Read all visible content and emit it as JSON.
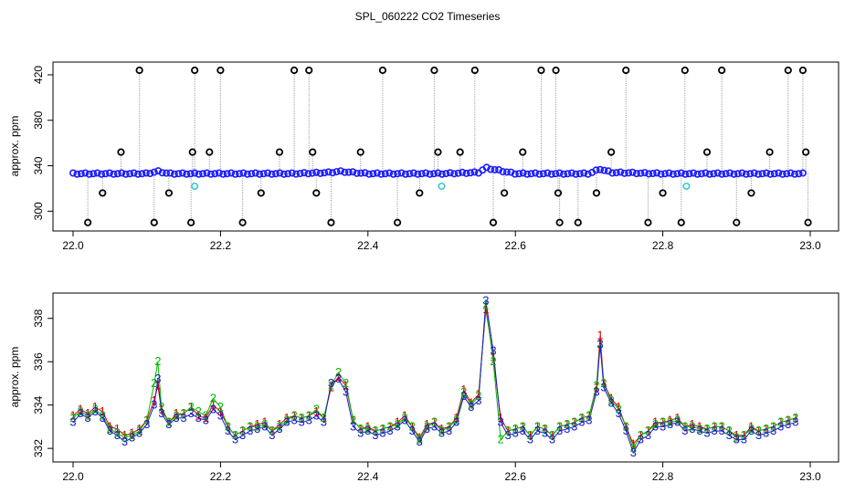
{
  "figure": {
    "title": "SPL_060222  CO2 Timeseries"
  },
  "chart_data": [
    {
      "type": "scatter",
      "panel": "top",
      "title": "",
      "xlabel": "",
      "ylabel": "approx. ppm",
      "xlim": [
        22.0,
        23.0
      ],
      "ylim": [
        285,
        428
      ],
      "xticks": [
        22.0,
        22.2,
        22.4,
        22.6,
        22.8,
        23.0
      ],
      "xtick_labels": [
        "22.0",
        "22.2",
        "22.4",
        "22.6",
        "22.8",
        "23.0"
      ],
      "yticks": [
        300,
        340,
        380,
        420
      ],
      "ytick_labels": [
        "300",
        "340",
        "380",
        "420"
      ],
      "grid": false,
      "baseline_series": {
        "name": "",
        "color": "#1a1aff",
        "x": [
          22.0,
          22.05,
          22.1,
          22.115,
          22.13,
          22.2,
          22.3,
          22.35,
          22.36,
          22.4,
          22.5,
          22.55,
          22.56,
          22.6,
          22.7,
          22.715,
          22.73,
          22.8,
          22.9,
          22.99
        ],
        "y": [
          333,
          333,
          333,
          335,
          333,
          333,
          333,
          334,
          335,
          333,
          333,
          334,
          338,
          333,
          333,
          337,
          334,
          333,
          333,
          333
        ]
      },
      "spikes": {
        "color": "#000000",
        "x": [
          22.02,
          22.04,
          22.065,
          22.09,
          22.11,
          22.13,
          22.16,
          22.162,
          22.165,
          22.185,
          22.2,
          22.23,
          22.255,
          22.28,
          22.3,
          22.32,
          22.325,
          22.33,
          22.35,
          22.39,
          22.42,
          22.44,
          22.47,
          22.49,
          22.495,
          22.525,
          22.545,
          22.57,
          22.585,
          22.61,
          22.635,
          22.655,
          22.658,
          22.66,
          22.685,
          22.71,
          22.73,
          22.75,
          22.78,
          22.8,
          22.825,
          22.83,
          22.86,
          22.88,
          22.9,
          22.92,
          22.945,
          22.97,
          22.99,
          22.994,
          22.997
        ],
        "y": [
          290,
          316,
          352,
          424,
          290,
          316,
          290,
          352,
          424,
          352,
          424,
          290,
          316,
          352,
          424,
          424,
          352,
          316,
          290,
          352,
          424,
          290,
          316,
          424,
          352,
          352,
          424,
          290,
          316,
          352,
          424,
          424,
          316,
          290,
          290,
          316,
          352,
          424,
          290,
          316,
          290,
          424,
          352,
          424,
          290,
          316,
          352,
          424,
          424,
          352,
          290
        ]
      },
      "flagged": {
        "color": "#33cccc",
        "x": [
          22.165,
          22.5,
          22.832
        ],
        "y": [
          322,
          322,
          322
        ]
      }
    },
    {
      "type": "line",
      "panel": "bottom",
      "title": "",
      "xlabel": "",
      "ylabel": "approx. ppm",
      "xlim": [
        22.0,
        23.0
      ],
      "ylim": [
        331.5,
        339.0
      ],
      "xticks": [
        22.0,
        22.2,
        22.4,
        22.6,
        22.8,
        23.0
      ],
      "xtick_labels": [
        "22.0",
        "22.2",
        "22.4",
        "22.6",
        "22.8",
        "23.0"
      ],
      "yticks": [
        332,
        334,
        336,
        338
      ],
      "ytick_labels": [
        "332",
        "334",
        "336",
        "338"
      ],
      "grid": false,
      "x": [
        22.0,
        22.01,
        22.02,
        22.03,
        22.04,
        22.05,
        22.06,
        22.07,
        22.08,
        22.09,
        22.1,
        22.11,
        22.115,
        22.12,
        22.13,
        22.14,
        22.15,
        22.16,
        22.17,
        22.18,
        22.19,
        22.2,
        22.21,
        22.22,
        22.23,
        22.24,
        22.25,
        22.26,
        22.27,
        22.28,
        22.29,
        22.3,
        22.31,
        22.32,
        22.33,
        22.34,
        22.35,
        22.36,
        22.37,
        22.38,
        22.39,
        22.4,
        22.41,
        22.42,
        22.43,
        22.44,
        22.45,
        22.46,
        22.47,
        22.48,
        22.49,
        22.5,
        22.51,
        22.52,
        22.53,
        22.54,
        22.55,
        22.56,
        22.57,
        22.58,
        22.59,
        22.6,
        22.61,
        22.62,
        22.63,
        22.64,
        22.65,
        22.66,
        22.67,
        22.68,
        22.69,
        22.7,
        22.71,
        22.715,
        22.72,
        22.73,
        22.74,
        22.75,
        22.76,
        22.77,
        22.78,
        22.79,
        22.8,
        22.81,
        22.82,
        22.83,
        22.84,
        22.85,
        22.86,
        22.87,
        22.88,
        22.89,
        22.9,
        22.91,
        22.92,
        22.93,
        22.94,
        22.95,
        22.96,
        22.97,
        22.98
      ],
      "series": [
        {
          "name": "",
          "marker": "1",
          "color": "#dd0000",
          "y": [
            333.5,
            333.8,
            333.6,
            333.9,
            333.7,
            333.0,
            332.9,
            332.6,
            332.7,
            332.9,
            333.3,
            334.2,
            334.9,
            333.8,
            333.2,
            333.6,
            333.6,
            333.9,
            333.5,
            333.4,
            334.0,
            333.7,
            333.0,
            332.6,
            332.8,
            333.0,
            333.1,
            333.2,
            332.8,
            333.1,
            333.4,
            333.5,
            333.4,
            333.5,
            333.7,
            333.4,
            334.8,
            335.3,
            334.9,
            333.3,
            332.9,
            333.0,
            332.8,
            332.9,
            333.0,
            333.2,
            333.5,
            333.0,
            332.5,
            333.1,
            333.2,
            332.9,
            333.0,
            333.4,
            334.7,
            334.1,
            334.5,
            338.4,
            336.2,
            333.4,
            332.8,
            332.9,
            333.0,
            332.6,
            333.0,
            332.9,
            332.6,
            333.0,
            333.1,
            333.2,
            333.4,
            333.5,
            334.8,
            337.2,
            335.0,
            334.3,
            333.9,
            333.0,
            332.2,
            332.6,
            332.8,
            333.2,
            333.2,
            333.3,
            333.4,
            333.0,
            333.1,
            333.0,
            332.9,
            333.0,
            333.0,
            332.8,
            332.6,
            332.6,
            333.0,
            332.8,
            332.9,
            333.0,
            333.2,
            333.3,
            333.4
          ]
        },
        {
          "name": "",
          "marker": "2",
          "color": "#00bb00",
          "y": [
            333.4,
            333.7,
            333.5,
            333.8,
            333.5,
            332.9,
            332.7,
            332.5,
            332.6,
            332.8,
            333.3,
            335.0,
            336.0,
            333.9,
            333.2,
            333.5,
            333.6,
            333.9,
            333.7,
            333.5,
            334.3,
            333.9,
            333.0,
            332.6,
            332.8,
            333.0,
            333.0,
            333.1,
            332.8,
            333.0,
            333.3,
            333.5,
            333.4,
            333.5,
            333.8,
            333.4,
            334.9,
            335.5,
            335.0,
            333.3,
            332.9,
            332.9,
            332.8,
            332.9,
            333.0,
            333.1,
            333.4,
            333.0,
            332.4,
            333.0,
            333.2,
            332.8,
            333.0,
            333.3,
            334.6,
            334.0,
            334.4,
            338.6,
            336.0,
            332.4,
            332.8,
            332.9,
            333.0,
            332.6,
            333.0,
            332.9,
            332.6,
            333.0,
            333.1,
            333.2,
            333.4,
            333.5,
            334.9,
            336.8,
            335.0,
            334.2,
            333.8,
            333.0,
            332.0,
            332.6,
            332.8,
            333.1,
            333.2,
            333.2,
            333.3,
            333.0,
            333.0,
            332.9,
            332.9,
            333.0,
            333.0,
            332.8,
            332.5,
            332.6,
            332.9,
            332.8,
            332.9,
            333.0,
            333.2,
            333.3,
            333.4
          ]
        },
        {
          "name": "",
          "marker": "3",
          "color": "#1a1acc",
          "y": [
            333.2,
            333.6,
            333.4,
            333.7,
            333.4,
            332.8,
            332.6,
            332.3,
            332.5,
            332.7,
            333.1,
            334.0,
            335.2,
            333.6,
            333.1,
            333.4,
            333.4,
            333.6,
            333.4,
            333.3,
            333.8,
            333.5,
            332.8,
            332.4,
            332.6,
            332.8,
            332.9,
            333.0,
            332.6,
            332.9,
            333.2,
            333.3,
            333.2,
            333.3,
            333.5,
            333.2,
            335.0,
            335.2,
            334.6,
            333.0,
            332.7,
            332.8,
            332.6,
            332.7,
            332.8,
            333.0,
            333.3,
            332.8,
            332.3,
            332.9,
            333.0,
            332.7,
            332.8,
            333.2,
            334.4,
            333.9,
            334.2,
            338.8,
            336.5,
            333.2,
            332.6,
            332.7,
            332.8,
            332.4,
            332.8,
            332.7,
            332.4,
            332.8,
            332.9,
            333.0,
            333.2,
            333.3,
            334.6,
            336.8,
            334.8,
            334.1,
            333.6,
            332.8,
            331.8,
            332.4,
            332.6,
            333.0,
            333.0,
            333.1,
            333.2,
            332.8,
            332.9,
            332.8,
            332.7,
            332.8,
            332.8,
            332.6,
            332.4,
            332.4,
            332.8,
            332.6,
            332.7,
            332.8,
            333.0,
            333.1,
            333.2
          ]
        }
      ]
    }
  ]
}
